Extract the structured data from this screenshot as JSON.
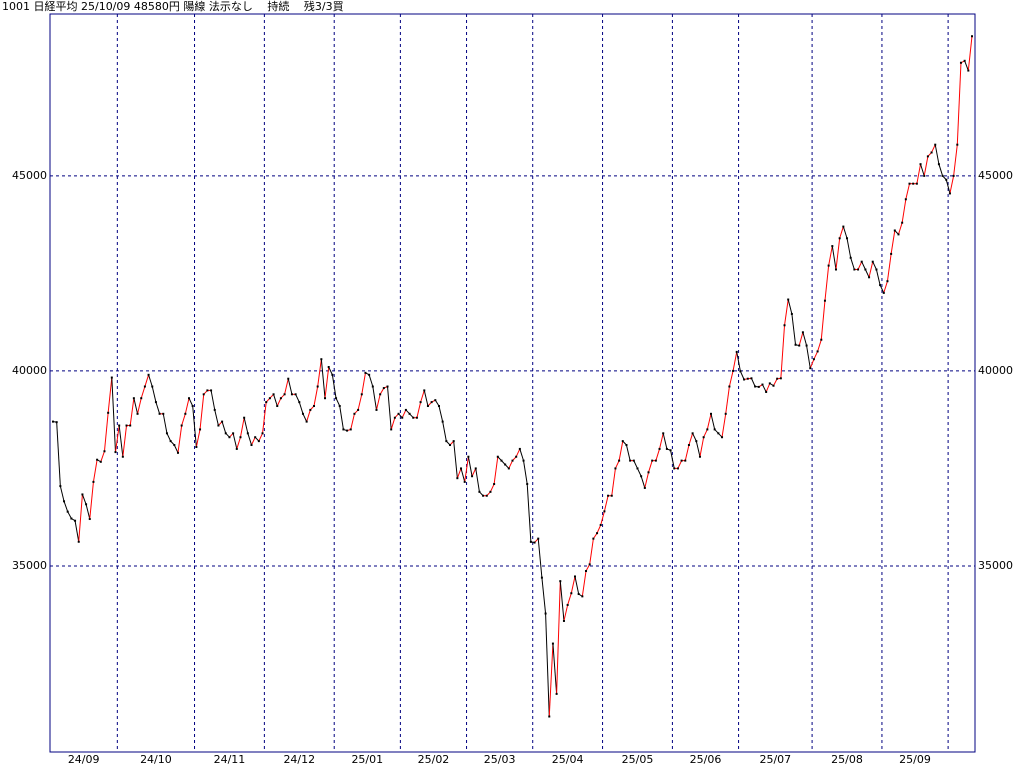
{
  "chart_data": {
    "type": "line",
    "title": "1001 日経平均 25/10/09 48580円 陽線 法示なし　 持続　 残3/3買",
    "months": [
      {
        "label": "24/09",
        "values": [
          38700,
          38686,
          37047,
          36657,
          36391,
          36215,
          36159,
          35620,
          36833,
          36581,
          36203,
          37155,
          37723,
          37670,
          37940,
          38926,
          39830,
          37919
        ]
      },
      {
        "label": "24/10",
        "values": [
          38600,
          37800,
          38600,
          38600,
          39300,
          38900,
          39300,
          39600,
          39900,
          39600,
          39200,
          38900,
          38900,
          38400,
          38200,
          38100,
          37900,
          38600,
          38900,
          39300,
          39100
        ]
      },
      {
        "label": "24/11",
        "values": [
          38050,
          38500,
          39400,
          39500,
          39500,
          39000,
          38600,
          38700,
          38400,
          38300,
          38400,
          38000,
          38300,
          38800,
          38400,
          38100,
          38300,
          38200,
          38400
        ]
      },
      {
        "label": "24/12",
        "values": [
          39200,
          39300,
          39400,
          39100,
          39300,
          39400,
          39800,
          39400,
          39400,
          39200,
          38900,
          38700,
          39000,
          39100,
          39600,
          40300,
          39300,
          40100,
          39900
        ]
      },
      {
        "label": "25/01",
        "values": [
          39300,
          39100,
          38500,
          38470,
          38500,
          38900,
          39000,
          39400,
          39950,
          39900,
          39600,
          39000,
          39400,
          39560,
          39600,
          38500,
          38800,
          38900
        ]
      },
      {
        "label": "25/02",
        "values": [
          38800,
          39000,
          38900,
          38800,
          38800,
          39200,
          39500,
          39100,
          39200,
          39250,
          39100,
          38700,
          38200,
          38100,
          38200,
          37250,
          37500,
          37155
        ]
      },
      {
        "label": "25/03",
        "values": [
          37800,
          37300,
          37500,
          36900,
          36800,
          36800,
          36900,
          37100,
          37800,
          37700,
          37600,
          37500,
          37700,
          37800,
          38000,
          37700,
          37100,
          35617
        ]
      },
      {
        "label": "25/04",
        "values": [
          35600,
          35700,
          34700,
          33780,
          31140,
          33010,
          31720,
          34610,
          33590,
          34000,
          34300,
          34730,
          34280,
          34220,
          34870,
          35040,
          35700,
          35840,
          36050
        ]
      },
      {
        "label": "25/05",
        "values": [
          36400,
          36800,
          36800,
          37500,
          37700,
          38200,
          38100,
          37700,
          37700,
          37500,
          37300,
          37000,
          37400,
          37700,
          37700,
          38000,
          38400,
          38000,
          37965
        ]
      },
      {
        "label": "25/06",
        "values": [
          37500,
          37500,
          37700,
          37700,
          38100,
          38400,
          38200,
          37800,
          38300,
          38500,
          38900,
          38500,
          38400,
          38300,
          38900,
          39600,
          40000,
          40487
        ]
      },
      {
        "label": "25/07",
        "values": [
          39990,
          39780,
          39800,
          39810,
          39600,
          39590,
          39650,
          39460,
          39680,
          39620,
          39800,
          39810,
          41170,
          41830,
          41460,
          40670,
          40650,
          40990,
          40650,
          40070
        ]
      },
      {
        "label": "25/08",
        "values": [
          40300,
          40500,
          40800,
          41800,
          42700,
          43200,
          42600,
          43400,
          43700,
          43400,
          42900,
          42600,
          42600,
          42800,
          42600,
          42400,
          42800,
          42600,
          42200
        ]
      },
      {
        "label": "25/09",
        "values": [
          42000,
          42300,
          43000,
          43600,
          43500,
          43800,
          44400,
          44800,
          44800,
          44800,
          45300,
          45000,
          45500,
          45600,
          45800,
          45300,
          45000,
          44900
        ]
      },
      {
        "label": null,
        "values": [
          44550,
          45000,
          45800,
          47900,
          47950,
          47700,
          48580
        ]
      }
    ],
    "ylim": [
      30230,
      49150
    ],
    "yticks": [
      35000,
      40000,
      45000
    ],
    "grid": true,
    "grid_color": "#000080",
    "up_color": "#ff0000",
    "down_color": "#000000",
    "marker_color": "#000000"
  }
}
